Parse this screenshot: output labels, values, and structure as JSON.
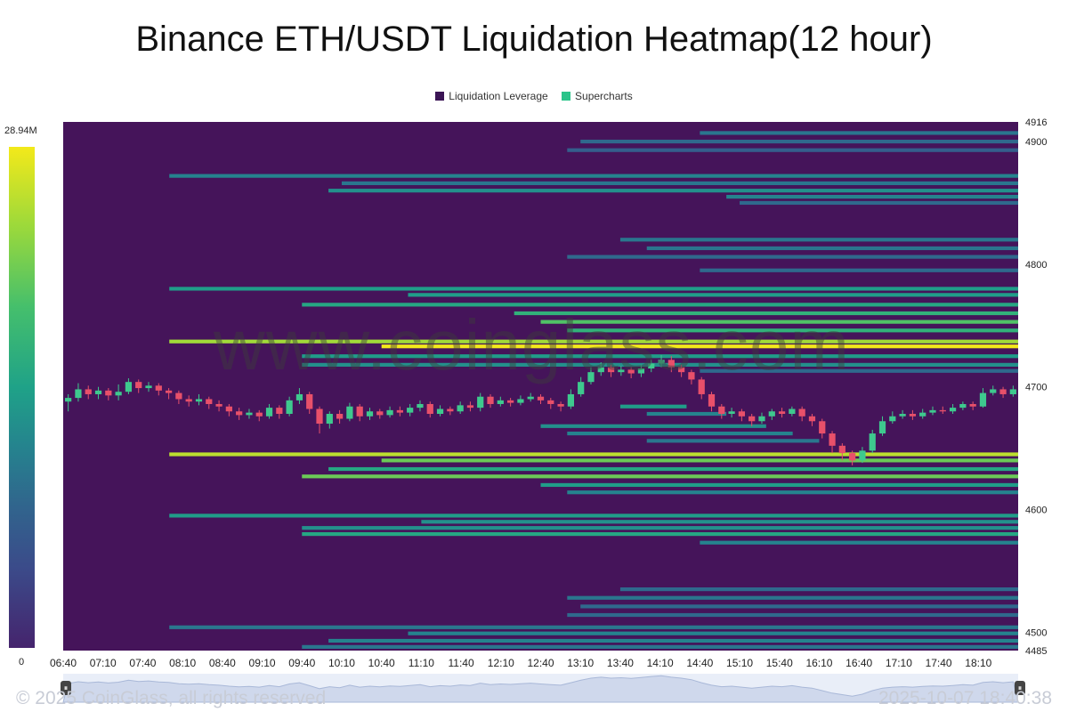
{
  "title": "Binance ETH/USDT Liquidation Heatmap(12 hour)",
  "legend": [
    {
      "label": "Liquidation Leverage",
      "color": "#3b1455"
    },
    {
      "label": "Supercharts",
      "color": "#2bc48a"
    }
  ],
  "colorbar": {
    "max_label": "28.94M",
    "min_label": "0"
  },
  "watermark": "www.coinglass.com",
  "footer": {
    "copyright": "© 2025 CoinGlass, all rights reserved",
    "timestamp": "2025-10-07 18:40:38"
  },
  "chart_data": {
    "type": "heatmap",
    "title": "Binance ETH/USDT Liquidation Heatmap(12 hour)",
    "y_range": [
      4485,
      4916
    ],
    "y_ticks": [
      4916,
      4900,
      4800,
      4700,
      4600,
      4500,
      4485
    ],
    "x_ticks": [
      "06:40",
      "07:10",
      "07:40",
      "08:10",
      "08:40",
      "09:10",
      "09:40",
      "10:10",
      "10:40",
      "11:10",
      "11:40",
      "12:10",
      "12:40",
      "13:10",
      "13:40",
      "14:10",
      "14:40",
      "15:10",
      "15:40",
      "16:10",
      "16:40",
      "17:10",
      "17:40",
      "18:10"
    ],
    "time_range": [
      "06:40",
      "18:40"
    ],
    "liquidation_bands": [
      {
        "price": 4907,
        "start": "14:40",
        "intensity": 0.35
      },
      {
        "price": 4900,
        "start": "13:10",
        "intensity": 0.3
      },
      {
        "price": 4893,
        "start": "13:00",
        "intensity": 0.25
      },
      {
        "price": 4872,
        "start": "08:00",
        "intensity": 0.4
      },
      {
        "price": 4866,
        "start": "10:10",
        "intensity": 0.35
      },
      {
        "price": 4860,
        "start": "10:00",
        "intensity": 0.45
      },
      {
        "price": 4855,
        "start": "15:00",
        "intensity": 0.4
      },
      {
        "price": 4850,
        "start": "15:10",
        "intensity": 0.3
      },
      {
        "price": 4820,
        "start": "13:40",
        "intensity": 0.35
      },
      {
        "price": 4813,
        "start": "14:00",
        "intensity": 0.35
      },
      {
        "price": 4806,
        "start": "13:00",
        "intensity": 0.3
      },
      {
        "price": 4795,
        "start": "14:40",
        "intensity": 0.3
      },
      {
        "price": 4780,
        "start": "08:00",
        "intensity": 0.5
      },
      {
        "price": 4775,
        "start": "11:00",
        "intensity": 0.5
      },
      {
        "price": 4767,
        "start": "09:40",
        "intensity": 0.55
      },
      {
        "price": 4760,
        "start": "12:20",
        "intensity": 0.6
      },
      {
        "price": 4753,
        "start": "12:40",
        "intensity": 0.7
      },
      {
        "price": 4746,
        "start": "13:00",
        "intensity": 0.6
      },
      {
        "price": 4737,
        "start": "08:00",
        "intensity": 0.85
      },
      {
        "price": 4733,
        "start": "10:40",
        "intensity": 1.0
      },
      {
        "price": 4725,
        "start": "09:40",
        "intensity": 0.5
      },
      {
        "price": 4718,
        "start": "09:40",
        "intensity": 0.45
      },
      {
        "price": 4713,
        "start": "14:40",
        "intensity": 0.3
      },
      {
        "price": 4684,
        "start": "13:40",
        "intensity": 0.5,
        "end": "14:30"
      },
      {
        "price": 4678,
        "start": "14:00",
        "intensity": 0.4,
        "end": "15:00"
      },
      {
        "price": 4668,
        "start": "12:40",
        "intensity": 0.45,
        "end": "15:30"
      },
      {
        "price": 4662,
        "start": "13:00",
        "intensity": 0.4,
        "end": "15:50"
      },
      {
        "price": 4656,
        "start": "14:00",
        "intensity": 0.35,
        "end": "16:10"
      },
      {
        "price": 4645,
        "start": "08:00",
        "intensity": 0.9
      },
      {
        "price": 4640,
        "start": "10:40",
        "intensity": 0.75
      },
      {
        "price": 4633,
        "start": "10:00",
        "intensity": 0.55
      },
      {
        "price": 4627,
        "start": "09:40",
        "intensity": 0.75
      },
      {
        "price": 4620,
        "start": "12:40",
        "intensity": 0.5
      },
      {
        "price": 4614,
        "start": "13:00",
        "intensity": 0.4
      },
      {
        "price": 4595,
        "start": "08:00",
        "intensity": 0.5
      },
      {
        "price": 4590,
        "start": "11:10",
        "intensity": 0.45
      },
      {
        "price": 4585,
        "start": "09:40",
        "intensity": 0.45
      },
      {
        "price": 4580,
        "start": "09:40",
        "intensity": 0.55
      },
      {
        "price": 4573,
        "start": "14:40",
        "intensity": 0.4
      },
      {
        "price": 4535,
        "start": "13:40",
        "intensity": 0.3
      },
      {
        "price": 4528,
        "start": "13:00",
        "intensity": 0.35
      },
      {
        "price": 4521,
        "start": "13:10",
        "intensity": 0.3
      },
      {
        "price": 4514,
        "start": "13:00",
        "intensity": 0.3
      },
      {
        "price": 4504,
        "start": "08:00",
        "intensity": 0.35
      },
      {
        "price": 4499,
        "start": "11:00",
        "intensity": 0.4
      },
      {
        "price": 4493,
        "start": "10:00",
        "intensity": 0.4
      },
      {
        "price": 4488,
        "start": "09:40",
        "intensity": 0.35
      }
    ],
    "candles": [
      [
        4688,
        4691,
        4680,
        4694
      ],
      [
        4691,
        4698,
        4688,
        4703
      ],
      [
        4698,
        4694,
        4690,
        4701
      ],
      [
        4694,
        4697,
        4690,
        4700
      ],
      [
        4697,
        4693,
        4689,
        4699
      ],
      [
        4693,
        4696,
        4689,
        4702
      ],
      [
        4696,
        4704,
        4694,
        4707
      ],
      [
        4704,
        4699,
        4695,
        4706
      ],
      [
        4699,
        4701,
        4696,
        4704
      ],
      [
        4701,
        4697,
        4693,
        4703
      ],
      [
        4697,
        4695,
        4690,
        4699
      ],
      [
        4695,
        4690,
        4686,
        4697
      ],
      [
        4690,
        4688,
        4684,
        4693
      ],
      [
        4688,
        4690,
        4685,
        4694
      ],
      [
        4690,
        4686,
        4682,
        4692
      ],
      [
        4686,
        4684,
        4680,
        4689
      ],
      [
        4684,
        4680,
        4676,
        4686
      ],
      [
        4680,
        4677,
        4673,
        4683
      ],
      [
        4677,
        4679,
        4674,
        4682
      ],
      [
        4679,
        4676,
        4672,
        4681
      ],
      [
        4676,
        4683,
        4674,
        4686
      ],
      [
        4683,
        4678,
        4674,
        4685
      ],
      [
        4678,
        4689,
        4676,
        4692
      ],
      [
        4689,
        4694,
        4686,
        4699
      ],
      [
        4694,
        4682,
        4678,
        4696
      ],
      [
        4682,
        4670,
        4662,
        4684
      ],
      [
        4670,
        4678,
        4666,
        4680
      ],
      [
        4678,
        4674,
        4670,
        4681
      ],
      [
        4674,
        4684,
        4672,
        4687
      ],
      [
        4684,
        4676,
        4672,
        4686
      ],
      [
        4676,
        4680,
        4673,
        4683
      ],
      [
        4680,
        4677,
        4674,
        4682
      ],
      [
        4677,
        4681,
        4675,
        4684
      ],
      [
        4681,
        4679,
        4676,
        4684
      ],
      [
        4679,
        4683,
        4676,
        4686
      ],
      [
        4683,
        4686,
        4680,
        4689
      ],
      [
        4686,
        4678,
        4675,
        4688
      ],
      [
        4678,
        4682,
        4676,
        4685
      ],
      [
        4682,
        4680,
        4677,
        4684
      ],
      [
        4680,
        4685,
        4678,
        4688
      ],
      [
        4685,
        4683,
        4680,
        4688
      ],
      [
        4683,
        4692,
        4680,
        4695
      ],
      [
        4692,
        4686,
        4683,
        4694
      ],
      [
        4686,
        4689,
        4684,
        4692
      ],
      [
        4689,
        4687,
        4684,
        4691
      ],
      [
        4687,
        4690,
        4685,
        4693
      ],
      [
        4690,
        4692,
        4688,
        4695
      ],
      [
        4692,
        4689,
        4686,
        4694
      ],
      [
        4689,
        4686,
        4682,
        4691
      ],
      [
        4686,
        4684,
        4680,
        4688
      ],
      [
        4684,
        4694,
        4682,
        4698
      ],
      [
        4694,
        4704,
        4692,
        4708
      ],
      [
        4704,
        4712,
        4702,
        4716
      ],
      [
        4712,
        4716,
        4709,
        4720
      ],
      [
        4716,
        4712,
        4708,
        4718
      ],
      [
        4712,
        4714,
        4709,
        4717
      ],
      [
        4714,
        4711,
        4707,
        4716
      ],
      [
        4711,
        4715,
        4708,
        4718
      ],
      [
        4715,
        4719,
        4712,
        4722
      ],
      [
        4719,
        4722,
        4716,
        4726
      ],
      [
        4722,
        4716,
        4712,
        4725
      ],
      [
        4716,
        4712,
        4708,
        4718
      ],
      [
        4712,
        4706,
        4702,
        4714
      ],
      [
        4706,
        4694,
        4690,
        4708
      ],
      [
        4694,
        4684,
        4680,
        4696
      ],
      [
        4684,
        4678,
        4674,
        4686
      ],
      [
        4678,
        4680,
        4675,
        4683
      ],
      [
        4680,
        4676,
        4672,
        4682
      ],
      [
        4676,
        4672,
        4668,
        4678
      ],
      [
        4672,
        4676,
        4670,
        4679
      ],
      [
        4676,
        4680,
        4673,
        4682
      ],
      [
        4680,
        4678,
        4675,
        4683
      ],
      [
        4678,
        4682,
        4676,
        4684
      ],
      [
        4682,
        4676,
        4672,
        4684
      ],
      [
        4676,
        4672,
        4668,
        4678
      ],
      [
        4672,
        4662,
        4658,
        4674
      ],
      [
        4662,
        4652,
        4646,
        4664
      ],
      [
        4652,
        4646,
        4640,
        4654
      ],
      [
        4646,
        4640,
        4636,
        4648
      ],
      [
        4640,
        4648,
        4638,
        4651
      ],
      [
        4648,
        4662,
        4646,
        4665
      ],
      [
        4662,
        4672,
        4660,
        4676
      ],
      [
        4672,
        4676,
        4670,
        4680
      ],
      [
        4676,
        4678,
        4674,
        4681
      ],
      [
        4678,
        4676,
        4673,
        4681
      ],
      [
        4676,
        4679,
        4674,
        4682
      ],
      [
        4679,
        4681,
        4677,
        4684
      ],
      [
        4681,
        4680,
        4678,
        4684
      ],
      [
        4680,
        4683,
        4678,
        4686
      ],
      [
        4683,
        4686,
        4681,
        4688
      ],
      [
        4686,
        4684,
        4681,
        4688
      ],
      [
        4684,
        4695,
        4683,
        4699
      ],
      [
        4695,
        4698,
        4693,
        4701
      ],
      [
        4698,
        4694,
        4691,
        4700
      ],
      [
        4694,
        4698,
        4692,
        4701
      ]
    ]
  }
}
